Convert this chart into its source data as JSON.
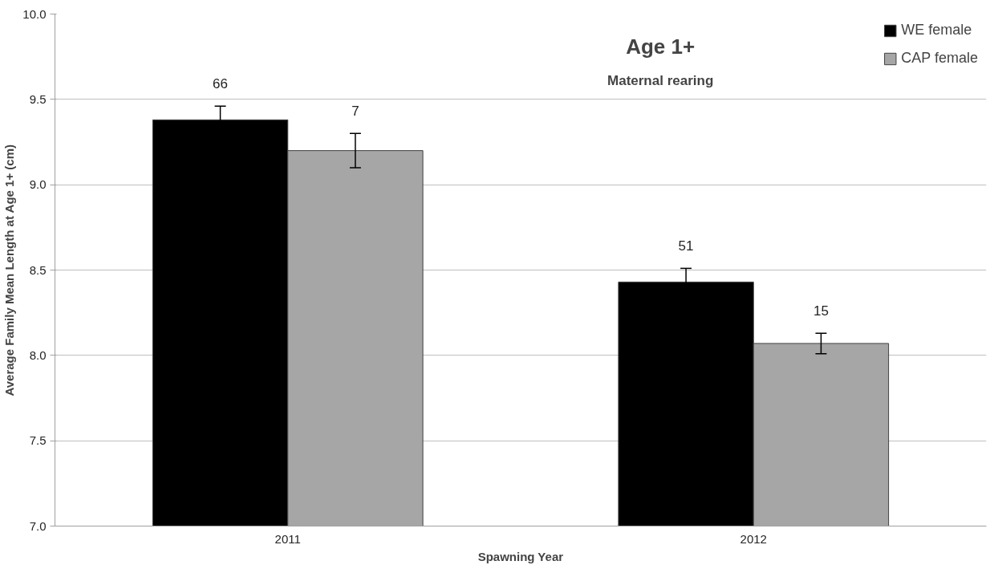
{
  "chart_data": {
    "type": "bar",
    "title": "Age 1+",
    "subtitle": "Maternal rearing",
    "xlabel": "Spawning Year",
    "ylabel": "Average Family Mean Length at Age 1+ (cm)",
    "categories": [
      "2011",
      "2012"
    ],
    "series": [
      {
        "name": "WE female",
        "color": "#000000",
        "values": [
          9.38,
          8.43
        ],
        "errors": [
          0.08,
          0.08
        ]
      },
      {
        "name": "CAP female",
        "color": "#a6a6a6",
        "values": [
          9.2,
          8.07
        ],
        "errors": [
          0.1,
          0.06
        ]
      }
    ],
    "annotations": [
      "66",
      "7",
      "51",
      "15"
    ],
    "ylim": [
      7,
      10
    ],
    "yticks": [
      {
        "value": 7,
        "label": "7.0"
      },
      {
        "value": 7.5,
        "label": "7.5"
      },
      {
        "value": 8,
        "label": "8.0"
      },
      {
        "value": 8.5,
        "label": "8.5"
      },
      {
        "value": 9,
        "label": "9.0"
      },
      {
        "value": 9.5,
        "label": "9.5"
      },
      {
        "value": 10,
        "label": "10.0"
      }
    ],
    "grid": "y",
    "legend": "top right"
  }
}
